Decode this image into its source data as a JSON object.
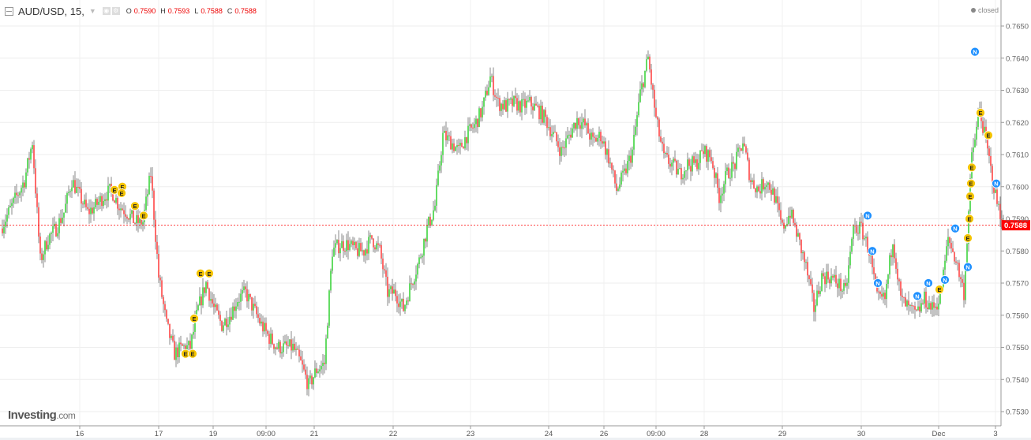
{
  "header": {
    "symbol": "AUD/USD, 15,",
    "ohlc": [
      {
        "key": "O",
        "value": "0.7590"
      },
      {
        "key": "H",
        "value": "0.7593"
      },
      {
        "key": "L",
        "value": "0.7588"
      },
      {
        "key": "C",
        "value": "0.7588"
      }
    ],
    "status": "closed"
  },
  "logo": {
    "main": "Investing",
    "suffix": ".com"
  },
  "colors": {
    "up": "#22cc22",
    "down": "#ff2a2a",
    "wick": "#888888",
    "last_price": "#ff0000",
    "event_e": "#f5c400",
    "event_n": "#1e90ff"
  },
  "chart_data": {
    "type": "candlestick",
    "title": "",
    "ylim": [
      0.7525,
      0.76575
    ],
    "yticks": [
      "0.7650",
      "0.7640",
      "0.7630",
      "0.7620",
      "0.7610",
      "0.7600",
      "0.7590",
      "0.7580",
      "0.7570",
      "0.7560",
      "0.7550",
      "0.7540",
      "0.7530"
    ],
    "last_price": "0.7588",
    "grid": true,
    "xticks": [
      {
        "label": "16",
        "i": 9.9
      },
      {
        "label": "17",
        "i": 19.9
      },
      {
        "label": "19",
        "i": 26.8
      },
      {
        "label": "09:00",
        "i": 33.5
      },
      {
        "label": "21",
        "i": 39.6
      },
      {
        "label": "22",
        "i": 49.6
      },
      {
        "label": "23",
        "i": 59.4
      },
      {
        "label": "24",
        "i": 69.3
      },
      {
        "label": "26",
        "i": 76.3
      },
      {
        "label": "09:00",
        "i": 82.9
      },
      {
        "label": "28",
        "i": 89
      },
      {
        "label": "29",
        "i": 98.9
      },
      {
        "label": "30",
        "i": 108.9
      },
      {
        "label": "Dec",
        "i": 118.7
      },
      {
        "label": "3",
        "i": 125.9
      }
    ],
    "price_path": [
      0.7587,
      0.7592,
      0.7597,
      0.7602,
      0.7614,
      0.7577,
      0.7584,
      0.7587,
      0.7592,
      0.7602,
      0.7597,
      0.7592,
      0.7594,
      0.7597,
      0.7599,
      0.7594,
      0.7592,
      0.7589,
      0.7589,
      0.7604,
      0.7572,
      0.7557,
      0.7548,
      0.755,
      0.755,
      0.7562,
      0.757,
      0.7562,
      0.7557,
      0.756,
      0.7565,
      0.7567,
      0.7562,
      0.7557,
      0.7553,
      0.755,
      0.755,
      0.755,
      0.7545,
      0.7538,
      0.7543,
      0.7545,
      0.758,
      0.7582,
      0.7582,
      0.758,
      0.758,
      0.7584,
      0.758,
      0.7567,
      0.7567,
      0.7562,
      0.757,
      0.7577,
      0.7587,
      0.7594,
      0.7616,
      0.7614,
      0.7611,
      0.7616,
      0.7619,
      0.7624,
      0.7634,
      0.7626,
      0.7625,
      0.7626,
      0.7625,
      0.7626,
      0.7624,
      0.7621,
      0.7616,
      0.7611,
      0.7616,
      0.7621,
      0.7619,
      0.7614,
      0.7616,
      0.7609,
      0.7599,
      0.7604,
      0.7611,
      0.7629,
      0.764,
      0.7621,
      0.7609,
      0.7607,
      0.7604,
      0.7607,
      0.7607,
      0.7611,
      0.7609,
      0.7597,
      0.7604,
      0.7607,
      0.7614,
      0.7602,
      0.7599,
      0.7602,
      0.7597,
      0.7587,
      0.7592,
      0.7584,
      0.7575,
      0.7562,
      0.7572,
      0.7572,
      0.757,
      0.7567,
      0.7587,
      0.7587,
      0.758,
      0.7565,
      0.7565,
      0.7584,
      0.7565,
      0.7562,
      0.756,
      0.7565,
      0.7562,
      0.7565,
      0.7584,
      0.7577,
      0.7567,
      0.7609,
      0.7624,
      0.7611,
      0.7597,
      0.7588
    ],
    "events": [
      {
        "type": "E",
        "i": 14.3,
        "price": 0.7599
      },
      {
        "type": "E",
        "i": 15.3,
        "price": 0.76
      },
      {
        "type": "E",
        "i": 15.2,
        "price": 0.7598
      },
      {
        "type": "E",
        "i": 16.9,
        "price": 0.7594
      },
      {
        "type": "E",
        "i": 18.0,
        "price": 0.7591
      },
      {
        "type": "E",
        "i": 25.2,
        "price": 0.7573
      },
      {
        "type": "E",
        "i": 26.3,
        "price": 0.7573
      },
      {
        "type": "E",
        "i": 24.4,
        "price": 0.7559
      },
      {
        "type": "E",
        "i": 23.3,
        "price": 0.7548
      },
      {
        "type": "E",
        "i": 24.2,
        "price": 0.7548
      },
      {
        "type": "E",
        "i": 118.8,
        "price": 0.7568
      },
      {
        "type": "E",
        "i": 122.4,
        "price": 0.7584
      },
      {
        "type": "E",
        "i": 122.6,
        "price": 0.759
      },
      {
        "type": "E",
        "i": 122.7,
        "price": 0.7597
      },
      {
        "type": "E",
        "i": 122.8,
        "price": 0.7601
      },
      {
        "type": "E",
        "i": 122.9,
        "price": 0.7606
      },
      {
        "type": "E",
        "i": 124.0,
        "price": 0.7623
      },
      {
        "type": "E",
        "i": 125.0,
        "price": 0.7616
      },
      {
        "type": "N",
        "i": 109.7,
        "price": 0.7591
      },
      {
        "type": "N",
        "i": 110.3,
        "price": 0.758
      },
      {
        "type": "N",
        "i": 111.0,
        "price": 0.757
      },
      {
        "type": "N",
        "i": 116.0,
        "price": 0.7566
      },
      {
        "type": "N",
        "i": 117.4,
        "price": 0.757
      },
      {
        "type": "N",
        "i": 119.5,
        "price": 0.7571
      },
      {
        "type": "N",
        "i": 120.8,
        "price": 0.7587
      },
      {
        "type": "N",
        "i": 122.4,
        "price": 0.7575
      },
      {
        "type": "N",
        "i": 123.3,
        "price": 0.7642
      },
      {
        "type": "N",
        "i": 126.0,
        "price": 0.7601
      }
    ]
  }
}
